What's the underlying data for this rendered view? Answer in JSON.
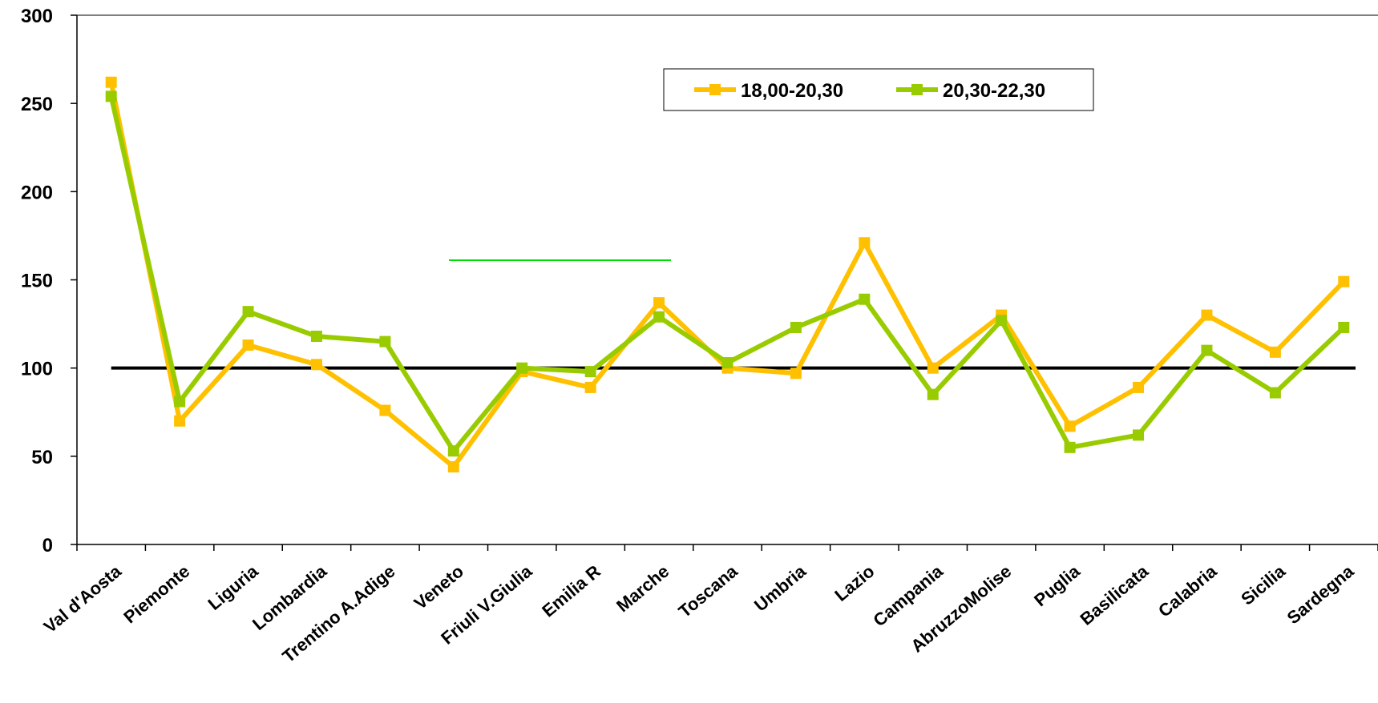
{
  "chart_data": {
    "type": "line",
    "categories": [
      "Val d'Aosta",
      "Piemonte",
      "Liguria",
      "Lombardia",
      "Trentino A.Adige",
      "Veneto",
      "Friuli V.Giulia",
      "Emilia R",
      "Marche",
      "Toscana",
      "Umbria",
      "Lazio",
      "Campania",
      "AbruzzoMolise",
      "Puglia",
      "Basilicata",
      "Calabria",
      "Sicilia",
      "Sardegna"
    ],
    "series": [
      {
        "name": "18,00-20,30",
        "color": "#FFC000",
        "values": [
          262,
          70,
          113,
          102,
          76,
          44,
          98,
          89,
          137,
          100,
          97,
          171,
          100,
          130,
          67,
          89,
          130,
          109,
          149
        ]
      },
      {
        "name": "20,30-22,30",
        "color": "#99CC00",
        "values": [
          254,
          81,
          132,
          118,
          115,
          53,
          100,
          98,
          129,
          103,
          123,
          139,
          85,
          127,
          55,
          62,
          110,
          86,
          123
        ]
      }
    ],
    "reference_line": {
      "value": 100,
      "color": "#000000"
    },
    "ylim": [
      0,
      300
    ],
    "yticks": [
      "0",
      "50",
      "100",
      "150",
      "200",
      "250",
      "300"
    ],
    "legend_position": "top-right",
    "grid": false
  }
}
